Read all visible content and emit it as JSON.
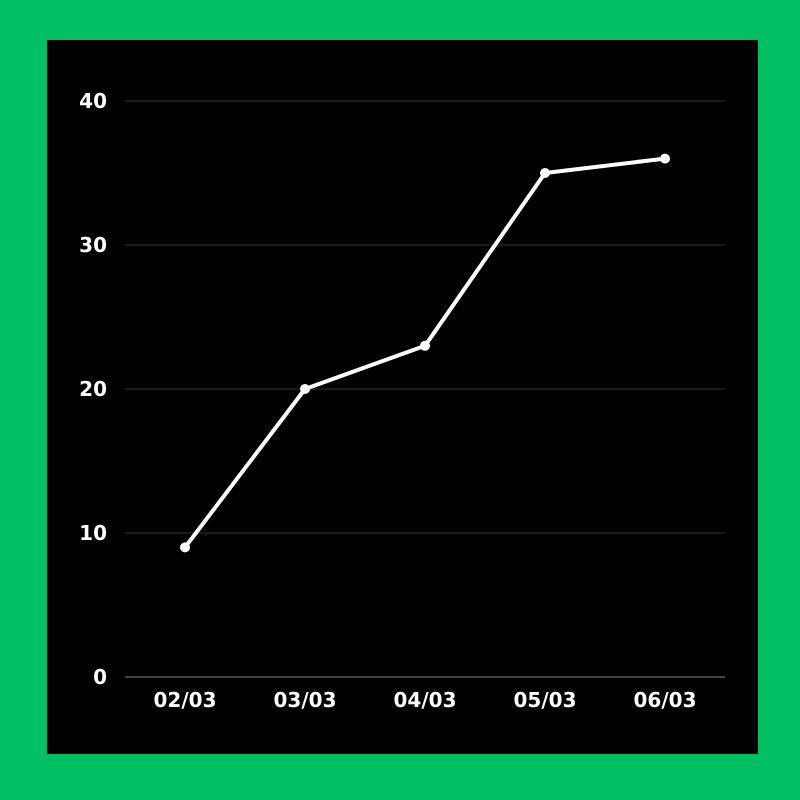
{
  "colors": {
    "frame": "#00bf63",
    "panel": "#000000",
    "line": "#ffffff",
    "grid": "#333333",
    "baseline": "#888888",
    "text": "#ffffff"
  },
  "chart_data": {
    "type": "line",
    "title": "",
    "xlabel": "",
    "ylabel": "",
    "categories": [
      "02/03",
      "03/03",
      "04/03",
      "05/03",
      "06/03"
    ],
    "series": [
      {
        "values": [
          9,
          20,
          23,
          35,
          36
        ]
      }
    ],
    "ylim": [
      0,
      40
    ],
    "yticks": [
      0,
      10,
      20,
      30,
      40
    ],
    "grid": true,
    "legend": "none"
  }
}
